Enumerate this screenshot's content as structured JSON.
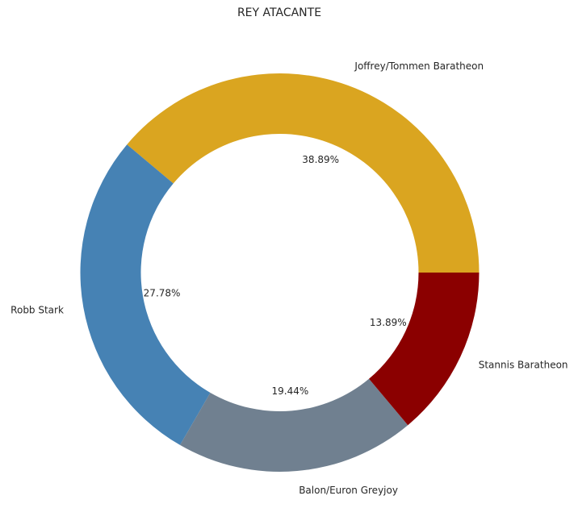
{
  "chart_data": {
    "type": "pie",
    "donut": true,
    "title": "REY ATACANTE",
    "slices": [
      {
        "label": "Joffrey/Tommen Baratheon",
        "value": 38.89,
        "pct_label": "38.89%",
        "color": "#DAA520"
      },
      {
        "label": "Robb Stark",
        "value": 27.78,
        "pct_label": "27.78%",
        "color": "#4682B4"
      },
      {
        "label": "Balon/Euron Greyjoy",
        "value": 19.44,
        "pct_label": "19.44%",
        "color": "#708090"
      },
      {
        "label": "Stannis Baratheon",
        "value": 13.89,
        "pct_label": "13.89%",
        "color": "#8B0000"
      }
    ]
  }
}
